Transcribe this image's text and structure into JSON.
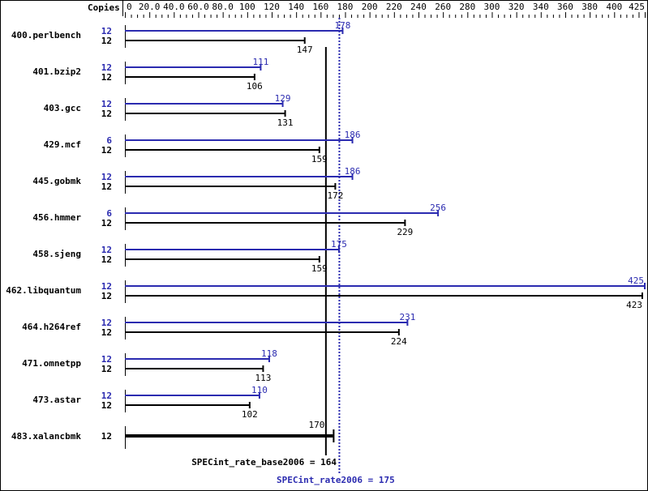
{
  "chart_data": {
    "type": "bar",
    "orientation": "horizontal",
    "column_header": "Copies",
    "xlim": [
      0,
      425
    ],
    "tick_labels": [
      "0",
      "20.0",
      "40.0",
      "60.0",
      "80.0",
      "100",
      "120",
      "140",
      "160",
      "180",
      "200",
      "220",
      "240",
      "260",
      "280",
      "300",
      "320",
      "340",
      "360",
      "380",
      "400",
      "425"
    ],
    "colors": {
      "peak": "#2b2bb0",
      "base": "#000000"
    },
    "benchmarks": [
      {
        "name": "400.perlbench",
        "peak_copies": "12",
        "peak": 178,
        "base_copies": "12",
        "base": 147
      },
      {
        "name": "401.bzip2",
        "peak_copies": "12",
        "peak": 111,
        "base_copies": "12",
        "base": 106
      },
      {
        "name": "403.gcc",
        "peak_copies": "12",
        "peak": 129,
        "base_copies": "12",
        "base": 131
      },
      {
        "name": "429.mcf",
        "peak_copies": "6",
        "peak": 186,
        "base_copies": "12",
        "base": 159
      },
      {
        "name": "445.gobmk",
        "peak_copies": "12",
        "peak": 186,
        "base_copies": "12",
        "base": 172
      },
      {
        "name": "456.hmmer",
        "peak_copies": "6",
        "peak": 256,
        "base_copies": "12",
        "base": 229
      },
      {
        "name": "458.sjeng",
        "peak_copies": "12",
        "peak": 175,
        "base_copies": "12",
        "base": 159
      },
      {
        "name": "462.libquantum",
        "peak_copies": "12",
        "peak": 425,
        "base_copies": "12",
        "base": 423
      },
      {
        "name": "464.h264ref",
        "peak_copies": "12",
        "peak": 231,
        "base_copies": "12",
        "base": 224
      },
      {
        "name": "471.omnetpp",
        "peak_copies": "12",
        "peak": 118,
        "base_copies": "12",
        "base": 113
      },
      {
        "name": "473.astar",
        "peak_copies": "12",
        "peak": 110,
        "base_copies": "12",
        "base": 102
      },
      {
        "name": "483.xalancbmk",
        "peak_copies": null,
        "peak": null,
        "base_copies": "12",
        "base": 170
      }
    ],
    "base_mean": {
      "label": "SPECint_rate_base2006 = 164",
      "value": 164
    },
    "peak_mean": {
      "label": "SPECint_rate2006 = 175",
      "value": 175
    }
  }
}
